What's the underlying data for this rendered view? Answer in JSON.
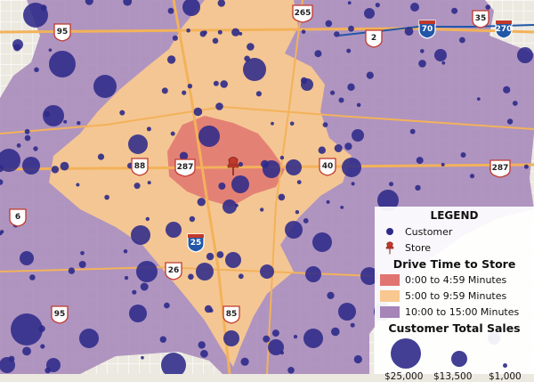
{
  "colors": {
    "zone_0_5": "#e07470",
    "zone_5_10": "#f8c890",
    "zone_10_15": "#a585b8",
    "customer": "#2e2a8a",
    "store_pin": "#c0392b",
    "interstate": "#2257a8",
    "highway_road": "#f3b25a",
    "base": "#ece9e0"
  },
  "route_shields": [
    {
      "id": "us95-top",
      "type": "us",
      "label": "95"
    },
    {
      "id": "us265",
      "type": "us",
      "label": "265"
    },
    {
      "id": "us2",
      "type": "us",
      "label": "2"
    },
    {
      "id": "i70",
      "type": "interstate",
      "label": "70"
    },
    {
      "id": "us35",
      "type": "us",
      "label": "35"
    },
    {
      "id": "i270",
      "type": "interstate",
      "label": "270"
    },
    {
      "id": "us88",
      "type": "us",
      "label": "88"
    },
    {
      "id": "us287",
      "type": "us",
      "label": "287"
    },
    {
      "id": "us40",
      "type": "us",
      "label": "40"
    },
    {
      "id": "us287-right",
      "type": "us",
      "label": "287"
    },
    {
      "id": "us6",
      "type": "us",
      "label": "6"
    },
    {
      "id": "i25",
      "type": "interstate",
      "label": "25"
    },
    {
      "id": "us26",
      "type": "us",
      "label": "26"
    },
    {
      "id": "us95-bottom",
      "type": "us",
      "label": "95"
    },
    {
      "id": "us85",
      "type": "us",
      "label": "85"
    }
  ],
  "legend": {
    "title": "LEGEND",
    "customer_label": "Customer",
    "store_label": "Store",
    "drive_time_heading": "Drive Time to Store",
    "zones": [
      {
        "label": "0:00 to 4:59 Minutes",
        "color": "#e07470"
      },
      {
        "label": "5:00 to 9:59 Minutes",
        "color": "#f8c890"
      },
      {
        "label": "10:00 to 15:00 Minutes",
        "color": "#a585b8"
      }
    ],
    "sales_heading": "Customer Total Sales",
    "sales_labels": [
      "$25,000",
      "$13,500",
      "$1,000"
    ]
  }
}
